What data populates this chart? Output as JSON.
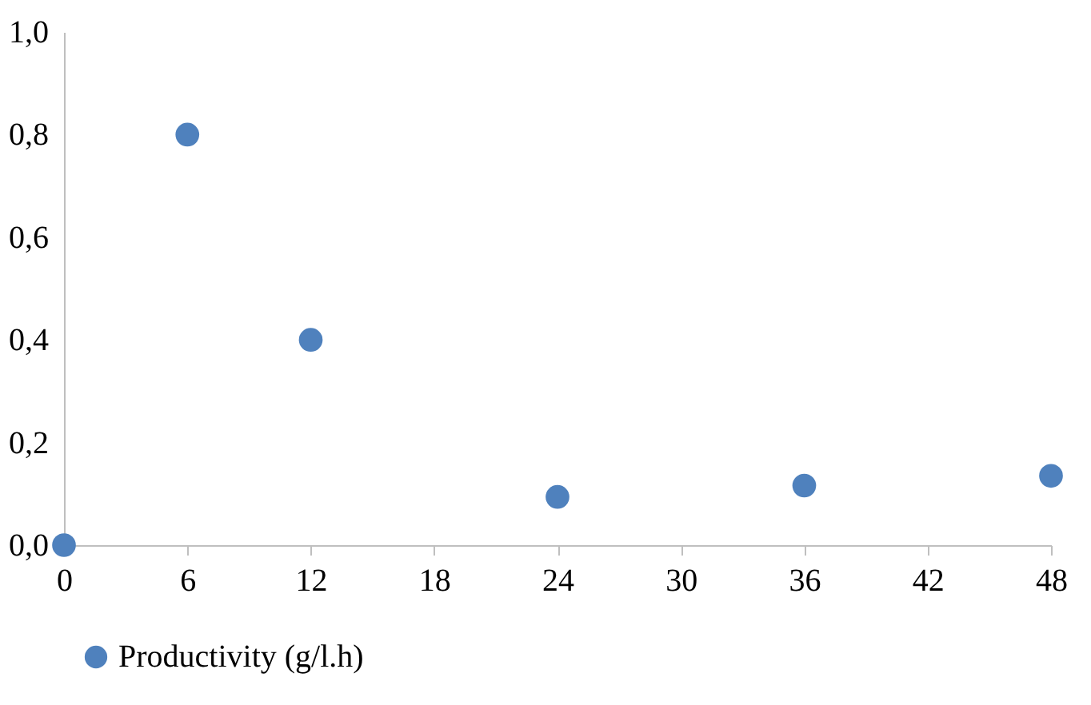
{
  "chart_data": {
    "type": "scatter",
    "x": [
      0,
      6,
      12,
      24,
      36,
      48
    ],
    "series": [
      {
        "name": "Productivity (g/l.h)",
        "color": "#4f81bd",
        "values": [
          0,
          0.8,
          0.4,
          0.094,
          0.116,
          0.135
        ]
      }
    ],
    "xlim": [
      0,
      48
    ],
    "xticks": [
      0,
      6,
      12,
      18,
      24,
      30,
      36,
      42,
      48
    ],
    "ylim": [
      0,
      1
    ],
    "yticks": [
      {
        "value": 0,
        "label": "0,0"
      },
      {
        "value": 0.2,
        "label": "0,2"
      },
      {
        "value": 0.4,
        "label": "0,4"
      },
      {
        "value": 0.6,
        "label": "0,6"
      },
      {
        "value": 0.8,
        "label": "0,8"
      },
      {
        "value": 1,
        "label": "1,0"
      }
    ],
    "grid": false,
    "legend": "bottom",
    "marker": "circle"
  }
}
